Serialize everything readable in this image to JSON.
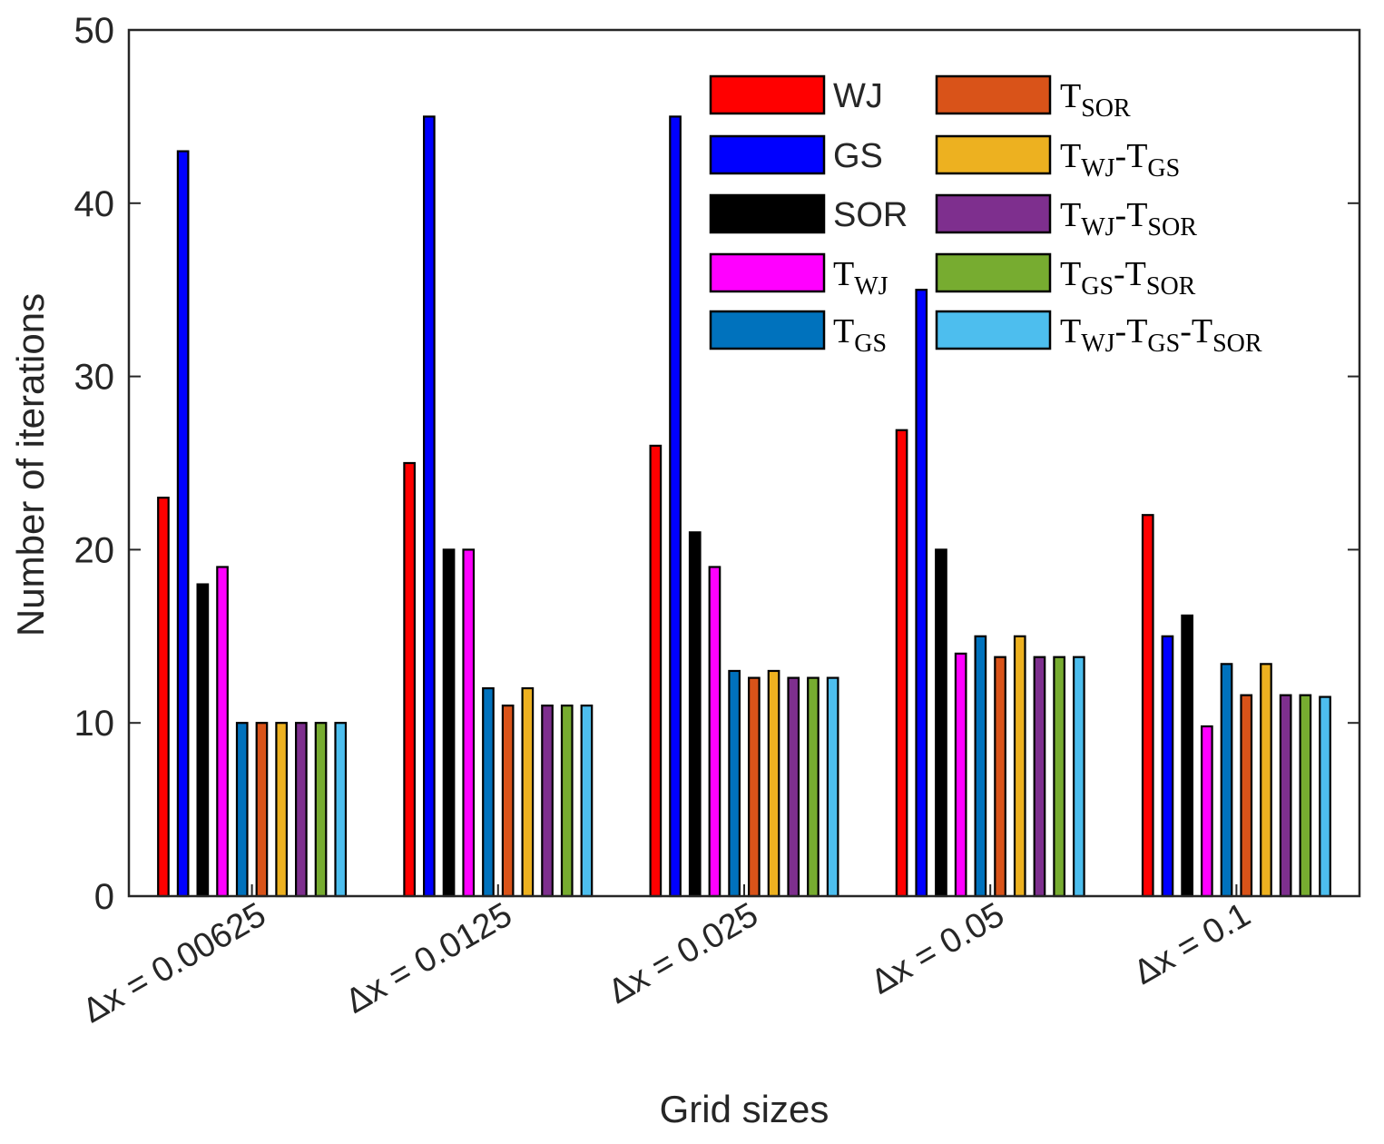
{
  "chart_data": {
    "type": "bar",
    "title": "",
    "xlabel": "Grid sizes",
    "ylabel": "Number of iterations",
    "ylim": [
      0,
      50
    ],
    "yticks": [
      "0",
      "10",
      "20",
      "30",
      "40",
      "50"
    ],
    "categories": [
      "Δx = 0.00625",
      "Δx = 0.0125",
      "Δx = 0.025",
      "Δx = 0.05",
      "Δx = 0.1"
    ],
    "legend_position": "top-right",
    "series": [
      {
        "name": "WJ",
        "main": "WJ",
        "subs": [],
        "color": "#ff0000",
        "values": [
          23,
          25,
          26,
          26.9,
          22
        ]
      },
      {
        "name": "GS",
        "main": "GS",
        "subs": [],
        "color": "#0000ff",
        "values": [
          43,
          45,
          45,
          35,
          15
        ]
      },
      {
        "name": "SOR",
        "main": "SOR",
        "subs": [],
        "color": "#000000",
        "values": [
          18,
          20,
          21,
          20,
          16.2
        ]
      },
      {
        "name": "T_WJ",
        "main": "",
        "subs": [
          "WJ"
        ],
        "color": "#ff00ff",
        "values": [
          19,
          20,
          19,
          14,
          9.8
        ]
      },
      {
        "name": "T_GS",
        "main": "",
        "subs": [
          "GS"
        ],
        "color": "#0072bd",
        "values": [
          10,
          12,
          13,
          15,
          13.4
        ]
      },
      {
        "name": "T_SOR",
        "main": "",
        "subs": [
          "SOR"
        ],
        "color": "#d95319",
        "values": [
          10,
          11,
          12.6,
          13.8,
          11.6
        ]
      },
      {
        "name": "T_WJ-T_GS",
        "main": "",
        "subs": [
          "WJ",
          "GS"
        ],
        "color": "#edb120",
        "values": [
          10,
          12,
          13,
          15,
          13.4
        ]
      },
      {
        "name": "T_WJ-T_SOR",
        "main": "",
        "subs": [
          "WJ",
          "SOR"
        ],
        "color": "#7e2f8e",
        "values": [
          10,
          11,
          12.6,
          13.8,
          11.6
        ]
      },
      {
        "name": "T_GS-T_SOR",
        "main": "",
        "subs": [
          "GS",
          "SOR"
        ],
        "color": "#77ac30",
        "values": [
          10,
          11,
          12.6,
          13.8,
          11.6
        ]
      },
      {
        "name": "T_WJ-T_GS-T_SOR",
        "main": "",
        "subs": [
          "WJ",
          "GS",
          "SOR"
        ],
        "color": "#4dbeee",
        "values": [
          10,
          11,
          12.6,
          13.8,
          11.5
        ]
      }
    ]
  }
}
